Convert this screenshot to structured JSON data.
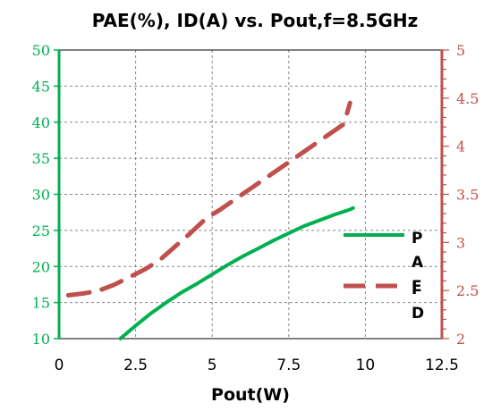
{
  "chart_data": {
    "type": "line",
    "title": "PAE(%), ID(A)  vs. Pout,f=8.5GHz",
    "xlabel": "Pout(W)",
    "xlim": [
      0,
      12.5
    ],
    "xticks": [
      "0",
      "2.5",
      "5",
      "7.5",
      "10",
      "12.5"
    ],
    "ylim_left": [
      10,
      50
    ],
    "yticks_left": [
      "10",
      "15",
      "20",
      "25",
      "30",
      "35",
      "40",
      "45",
      "50"
    ],
    "ylim_right": [
      2,
      5
    ],
    "yticks_right": [
      "2",
      "2.5",
      "3",
      "3.5",
      "4",
      "4.5",
      "5"
    ],
    "grid": true,
    "legend_position": "right",
    "series": [
      {
        "name": "PAE",
        "axis": "left",
        "color": "#00b050",
        "style": "solid",
        "x": [
          2.0,
          2.5,
          3.0,
          3.5,
          4.0,
          4.5,
          5.0,
          5.5,
          6.0,
          6.5,
          7.0,
          7.5,
          8.0,
          8.5,
          9.0,
          9.5,
          9.6
        ],
        "y": [
          10.0,
          11.8,
          13.5,
          15.0,
          16.4,
          17.6,
          18.9,
          20.2,
          21.4,
          22.5,
          23.6,
          24.6,
          25.6,
          26.4,
          27.2,
          27.9,
          28.1
        ]
      },
      {
        "name": "ID",
        "axis": "right",
        "color": "#c0504d",
        "style": "dashed",
        "x": [
          0.3,
          0.8,
          1.3,
          1.8,
          2.3,
          2.8,
          3.3,
          3.8,
          4.3,
          4.8,
          5.3,
          5.8,
          6.3,
          6.8,
          7.3,
          7.8,
          8.3,
          8.8,
          9.3,
          9.5
        ],
        "y": [
          2.45,
          2.47,
          2.5,
          2.56,
          2.64,
          2.72,
          2.82,
          2.96,
          3.1,
          3.25,
          3.35,
          3.46,
          3.57,
          3.68,
          3.79,
          3.9,
          4.01,
          4.12,
          4.23,
          4.45
        ]
      }
    ]
  }
}
